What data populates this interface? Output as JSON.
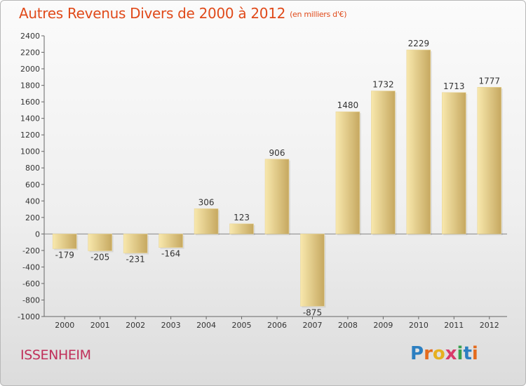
{
  "header": {
    "title": "Autres Revenus Divers de 2000 à 2012",
    "unit": "(en milliers d'€)"
  },
  "footer": {
    "place": "ISSENHEIM",
    "logo_letters": [
      "P",
      "r",
      "o",
      "x",
      "i",
      "t",
      "i"
    ]
  },
  "colors": {
    "title": "#e04a1a",
    "place": "#c0305a",
    "bar_light": "#f6e3a2",
    "bar_dark": "#c9aa64"
  },
  "chart_data": {
    "type": "bar",
    "title": "Autres Revenus Divers de 2000 à 2012",
    "subtitle": "(en milliers d'€)",
    "xlabel": "",
    "ylabel": "",
    "categories": [
      "2000",
      "2001",
      "2002",
      "2003",
      "2004",
      "2005",
      "2006",
      "2007",
      "2008",
      "2009",
      "2010",
      "2011",
      "2012"
    ],
    "values": [
      -179,
      -205,
      -231,
      -164,
      306,
      123,
      906,
      -875,
      1480,
      1732,
      2229,
      1713,
      1777
    ],
    "value_labels": [
      "-179",
      "-205",
      "-231",
      "-164",
      "306",
      "123",
      "906",
      "-875",
      "1480",
      "1732",
      "2229",
      "1713",
      "1777"
    ],
    "ylim": [
      -1000,
      2400
    ],
    "y_ticks": [
      -1000,
      -800,
      -600,
      -400,
      -200,
      0,
      200,
      400,
      600,
      800,
      1000,
      1200,
      1400,
      1600,
      1800,
      2000,
      2200,
      2400
    ],
    "grid": false,
    "legend": "none"
  }
}
